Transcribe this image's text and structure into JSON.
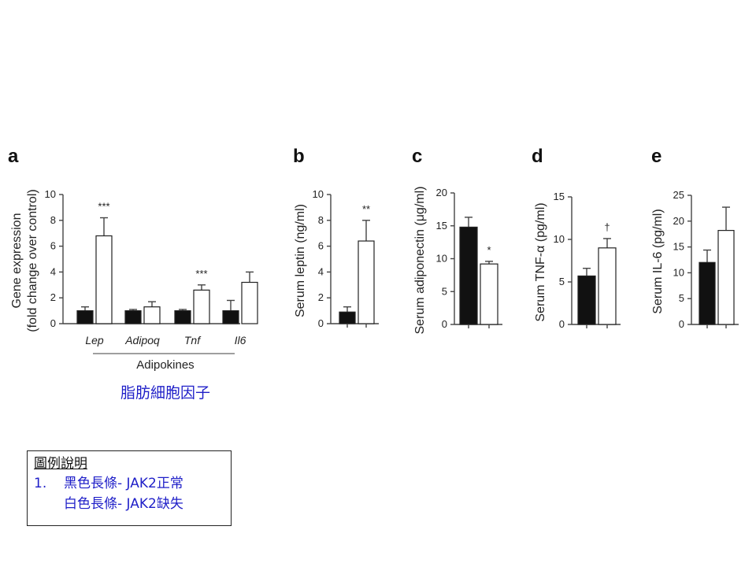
{
  "caption": "脂肪細胞因子",
  "legend": {
    "title": "圖例說明",
    "number": "1.",
    "line1": "黑色長條- JAK2正常",
    "line2": "白色長條- JAK2缺失"
  },
  "colors": {
    "control": "#111111",
    "knockout": "#ffffff",
    "caption": "#1f1fc8"
  },
  "chart_data": [
    {
      "panel": "a",
      "type": "bar",
      "ylabel": "Gene expression",
      "ylabel2": "(fold change over control)",
      "group_label": "Adipokines",
      "categories": [
        "Lep",
        "Adipoq",
        "Tnf",
        "Il6"
      ],
      "ylim": [
        0,
        10
      ],
      "yticks": [
        "0",
        "2",
        "4",
        "6",
        "8",
        "10"
      ],
      "series": [
        {
          "values": [
            1.0,
            1.0,
            1.0,
            1.0
          ],
          "errors": [
            0.3,
            0.1,
            0.1,
            0.8
          ],
          "color": "#111111"
        },
        {
          "values": [
            6.8,
            1.3,
            2.6,
            3.2
          ],
          "errors": [
            1.4,
            0.4,
            0.4,
            0.8
          ],
          "color": "#ffffff"
        }
      ],
      "significance": [
        "***",
        "",
        "***",
        ""
      ]
    },
    {
      "panel": "b",
      "type": "bar",
      "ylabel": "Serum leptin (ng/ml)",
      "ylim": [
        0,
        10
      ],
      "yticks": [
        "0",
        "2",
        "4",
        "6",
        "8",
        "10"
      ],
      "series": [
        {
          "values": [
            0.9
          ],
          "errors": [
            0.4
          ],
          "color": "#111111"
        },
        {
          "values": [
            6.4
          ],
          "errors": [
            1.6
          ],
          "color": "#ffffff"
        }
      ],
      "significance": "**"
    },
    {
      "panel": "c",
      "type": "bar",
      "ylabel": "Serum adiponectin (μg/ml)",
      "ylim": [
        0,
        20
      ],
      "yticks": [
        "0",
        "5",
        "10",
        "15",
        "20"
      ],
      "series": [
        {
          "values": [
            14.8
          ],
          "errors": [
            1.5
          ],
          "color": "#111111"
        },
        {
          "values": [
            9.2
          ],
          "errors": [
            0.4
          ],
          "color": "#ffffff"
        }
      ],
      "significance": "*"
    },
    {
      "panel": "d",
      "type": "bar",
      "ylabel": "Serum TNF-α (pg/ml)",
      "ylim": [
        0,
        15
      ],
      "yticks": [
        "0",
        "5",
        "10",
        "15"
      ],
      "series": [
        {
          "values": [
            5.7
          ],
          "errors": [
            0.9
          ],
          "color": "#111111"
        },
        {
          "values": [
            9.0
          ],
          "errors": [
            1.1
          ],
          "color": "#ffffff"
        }
      ],
      "significance": "†"
    },
    {
      "panel": "e",
      "type": "bar",
      "ylabel": "Serum IL-6 (pg/ml)",
      "ylim": [
        0,
        25
      ],
      "yticks": [
        "0",
        "5",
        "10",
        "15",
        "20",
        "25"
      ],
      "series": [
        {
          "values": [
            12.0
          ],
          "errors": [
            2.4
          ],
          "color": "#111111"
        },
        {
          "values": [
            18.2
          ],
          "errors": [
            4.5
          ],
          "color": "#ffffff"
        }
      ],
      "significance": ""
    }
  ]
}
